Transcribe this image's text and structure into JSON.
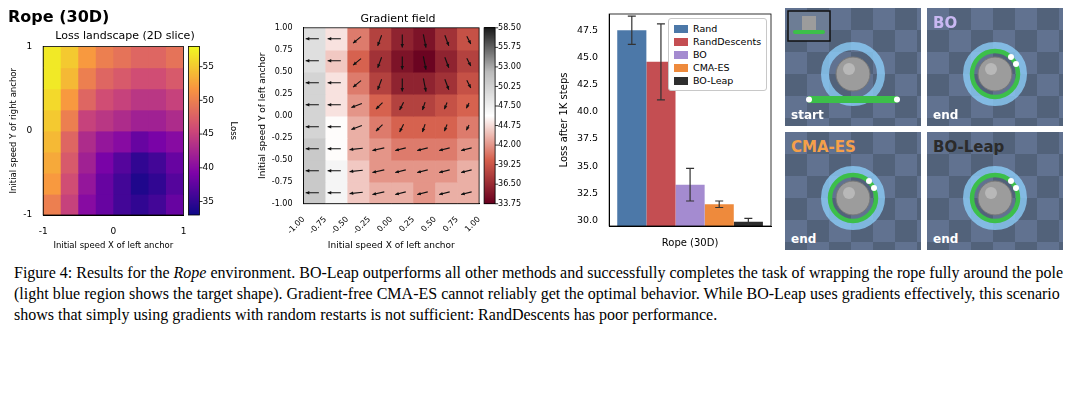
{
  "chart_data": [
    {
      "type": "heatmap",
      "title": "Rope (30D)",
      "subtitle": "Loss landscape (2D slice)",
      "x_label": "Initial speed X of left anchor",
      "y_label": "Initial speed Y of right anchor",
      "color": "plasma",
      "x": [
        -0.875,
        -0.625,
        -0.375,
        -0.125,
        0.125,
        0.375,
        0.625,
        0.875
      ],
      "y": [
        -0.875,
        -0.625,
        -0.375,
        -0.125,
        0.125,
        0.375,
        0.625,
        0.875
      ],
      "values": [
        [
          50,
          45,
          40,
          38,
          36,
          35,
          36,
          38
        ],
        [
          52,
          46,
          41,
          38,
          36,
          34,
          35,
          37
        ],
        [
          53,
          47,
          42,
          39,
          37,
          35,
          36,
          38
        ],
        [
          54,
          48,
          43,
          41,
          40,
          38,
          39,
          40
        ],
        [
          55,
          50,
          45,
          44,
          43,
          42,
          42,
          43
        ],
        [
          56,
          52,
          48,
          46,
          45,
          44,
          44,
          45
        ],
        [
          57,
          54,
          50,
          48,
          47,
          46,
          46,
          47
        ],
        [
          57,
          55,
          52,
          50,
          49,
          48,
          48,
          49
        ]
      ],
      "xlim": [
        -1,
        1
      ],
      "xticks": [
        -1,
        0,
        1
      ],
      "ylim": [
        -1,
        1
      ],
      "yticks": [
        -1,
        0,
        1
      ],
      "colorbar": {
        "label": "Loss",
        "range": [
          33,
          58
        ],
        "ticks": [
          35,
          40,
          45,
          50,
          55
        ]
      }
    },
    {
      "type": "heatmap",
      "title": "Gradient field",
      "x_label": "Initial speed X of left anchor",
      "y_label": "Initial speed Y of left anchor",
      "color": "RdGy",
      "x": [
        -0.875,
        -0.625,
        -0.375,
        -0.125,
        0.125,
        0.375,
        0.625,
        0.875
      ],
      "y": [
        -0.875,
        -0.625,
        -0.375,
        -0.125,
        0.125,
        0.375,
        0.625,
        0.875
      ],
      "values": [
        [
          51,
          47,
          44,
          43,
          43,
          42,
          43,
          43
        ],
        [
          51,
          47,
          44,
          42,
          42,
          42,
          42,
          43
        ],
        [
          51,
          46,
          43,
          42,
          41,
          41,
          41,
          42
        ],
        [
          50,
          46,
          43,
          41,
          40,
          40,
          40,
          41
        ],
        [
          50,
          45,
          42,
          40,
          38,
          38,
          39,
          40
        ],
        [
          50,
          45,
          41,
          38,
          36,
          36,
          37,
          39
        ],
        [
          49,
          44,
          40,
          37,
          35,
          34,
          36,
          38
        ],
        [
          49,
          45,
          41,
          38,
          36,
          35,
          37,
          39
        ]
      ],
      "arrows": {
        "u": [
          [
            -1,
            -1,
            -1,
            -0.9,
            -0.8,
            -0.8,
            -0.8,
            -0.8
          ],
          [
            -1,
            -1,
            -1,
            -0.9,
            -0.8,
            -0.8,
            -0.8,
            -0.8
          ],
          [
            -1,
            -1,
            -1,
            -0.9,
            -0.8,
            -0.8,
            -0.8,
            -0.8
          ],
          [
            -1,
            -1,
            -0.8,
            -0.5,
            -0.3,
            -0.2,
            -0.2,
            -0.2
          ],
          [
            -1,
            -1,
            -0.8,
            -0.5,
            -0.3,
            -0.2,
            -0.2,
            -0.2
          ],
          [
            -1,
            -1,
            -0.6,
            -0.3,
            0,
            0.2,
            0.3,
            0.3
          ],
          [
            -1,
            -1,
            -0.6,
            -0.3,
            0,
            0.2,
            0.3,
            0.3
          ],
          [
            -1,
            -1,
            -0.6,
            -0.3,
            0,
            0.2,
            0.3,
            0.3
          ]
        ],
        "v": [
          [
            0,
            0,
            -0.1,
            -0.2,
            -0.2,
            -0.2,
            -0.2,
            -0.2
          ],
          [
            0,
            0,
            -0.1,
            -0.2,
            -0.2,
            -0.2,
            -0.2,
            -0.2
          ],
          [
            0,
            0,
            -0.1,
            -0.2,
            -0.2,
            -0.2,
            -0.2,
            -0.2
          ],
          [
            0,
            0,
            -0.3,
            -0.5,
            -0.6,
            -0.6,
            -0.5,
            -0.4
          ],
          [
            0,
            0,
            -0.3,
            -0.5,
            -0.6,
            -0.6,
            -0.5,
            -0.4
          ],
          [
            0,
            0,
            -0.5,
            -0.8,
            -1,
            -1,
            -0.8,
            -0.6
          ],
          [
            0,
            0,
            -0.5,
            -0.8,
            -1,
            -1,
            -0.8,
            -0.6
          ],
          [
            0,
            0,
            -0.5,
            -0.8,
            -1,
            -1,
            -0.8,
            -0.6
          ]
        ]
      },
      "xlim": [
        -1,
        1
      ],
      "xticks": [
        {
          "value": -1,
          "label": "-1.00"
        },
        {
          "value": -0.75,
          "label": "-0.75"
        },
        {
          "value": -0.5,
          "label": "-0.50"
        },
        {
          "value": -0.25,
          "label": "-0.25"
        },
        {
          "value": 0,
          "label": "0.00"
        },
        {
          "value": 0.25,
          "label": "0.25"
        },
        {
          "value": 0.5,
          "label": "0.50"
        },
        {
          "value": 0.75,
          "label": "0.75"
        },
        {
          "value": 1,
          "label": "1.00"
        }
      ],
      "ylim": [
        -1,
        1
      ],
      "yticks": [
        {
          "value": -1,
          "label": "-1.00"
        },
        {
          "value": -0.75,
          "label": "-0.75"
        },
        {
          "value": -0.5,
          "label": "-0.50"
        },
        {
          "value": -0.25,
          "label": "-0.25"
        },
        {
          "value": 0,
          "label": "0.00"
        },
        {
          "value": 0.25,
          "label": "0.25"
        },
        {
          "value": 0.5,
          "label": "0.50"
        },
        {
          "value": 0.75,
          "label": "0.75"
        },
        {
          "value": 1,
          "label": "1.00"
        }
      ],
      "colorbar": {
        "range": [
          33.75,
          58.5
        ],
        "ticks": [
          {
            "value": 33.75,
            "label": "33.75"
          },
          {
            "value": 36.5,
            "label": "36.50"
          },
          {
            "value": 39.25,
            "label": "39.25"
          },
          {
            "value": 42,
            "label": "42.00"
          },
          {
            "value": 44.75,
            "label": "44.75"
          },
          {
            "value": 47.5,
            "label": "47.50"
          },
          {
            "value": 50.25,
            "label": "50.25"
          },
          {
            "value": 53,
            "label": "53.00"
          },
          {
            "value": 55.75,
            "label": "55.75"
          },
          {
            "value": 58.5,
            "label": "58.50"
          }
        ]
      }
    },
    {
      "type": "bar",
      "y_label": "Loss after 1K steps",
      "categories": [
        "Rope (30D)"
      ],
      "series": [
        {
          "name": "Rand",
          "color": "#4c78a8",
          "values": [
            47.5
          ],
          "errors": [
            1.3
          ]
        },
        {
          "name": "RandDescents",
          "color": "#c44e52",
          "values": [
            44.6
          ],
          "errors": [
            3.5
          ]
        },
        {
          "name": "BO",
          "color": "#a48bd0",
          "values": [
            33.3
          ],
          "errors": [
            1.5
          ]
        },
        {
          "name": "CMA-ES",
          "color": "#ee8a3c",
          "values": [
            31.5
          ],
          "errors": [
            0.3
          ]
        },
        {
          "name": "BO-Leap",
          "color": "#2e2e2e",
          "values": [
            29.9
          ],
          "errors": [
            0.3
          ]
        }
      ],
      "ylim": [
        29.5,
        49
      ],
      "yticks": [
        {
          "value": 30,
          "label": "30.0"
        },
        {
          "value": 32.5,
          "label": "32.5"
        },
        {
          "value": 35,
          "label": "35.0"
        },
        {
          "value": 37.5,
          "label": "37.5"
        },
        {
          "value": 40,
          "label": "40.0"
        },
        {
          "value": 42.5,
          "label": "42.5"
        },
        {
          "value": 45,
          "label": "45.0"
        },
        {
          "value": 47.5,
          "label": "47.5"
        }
      ],
      "legend": "upper right",
      "grid": false
    }
  ],
  "scenes": [
    {
      "state": "start"
    },
    {
      "method": "BO",
      "method_color": "#c9b8f2",
      "state": "end"
    },
    {
      "method": "CMA-ES",
      "method_color": "#f5a04a",
      "state": "end"
    },
    {
      "method": "BO-Leap",
      "method_color": "#2b2b2b",
      "state": "end"
    }
  ],
  "caption": [
    {
      "text": "Figure 4: Results for the "
    },
    {
      "text": "Rope",
      "italic": true
    },
    {
      "text": " environment. BO-Leap outperforms all other methods and successfully completes the task of wrapping the rope fully around the pole (light blue region shows the target shape). Gradient-free CMA-ES cannot reliably get the optimal behavior. While BO-Leap uses gradients effectively, this scenario shows that simply using gradients with random restarts is not sufficient: RandDescents has poor performance."
    }
  ]
}
